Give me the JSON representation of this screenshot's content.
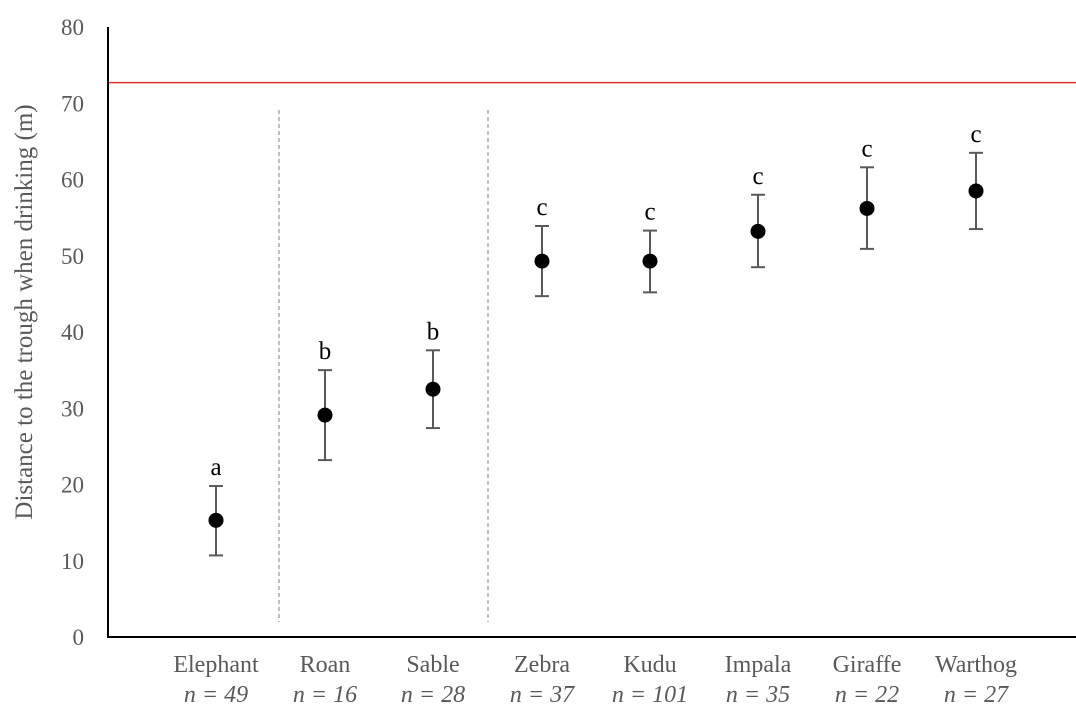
{
  "chart_data": {
    "type": "scatter",
    "title": "",
    "xlabel": "",
    "ylabel": "Distance to the trough when drinking (m)",
    "ylim": [
      0,
      80
    ],
    "yticks": [
      0,
      10,
      20,
      30,
      40,
      50,
      60,
      70,
      80
    ],
    "grid": false,
    "legend": "none",
    "reference_line": {
      "y": 72.7,
      "color": "#d9312b"
    },
    "group_separators_after_category_index": [
      0,
      2
    ],
    "categories": [
      "Elephant",
      "Roan",
      "Sable",
      "Zebra",
      "Kudu",
      "Impala",
      "Giraffe",
      "Warthog"
    ],
    "sample_sizes": [
      "n = 49",
      "n = 16",
      "n = 28",
      "n = 37",
      "n = 101",
      "n = 35",
      "n = 22",
      "n = 27"
    ],
    "series": [
      {
        "values": [
          15.3,
          29.1,
          32.5,
          49.3,
          49.3,
          53.2,
          56.2,
          58.5
        ],
        "error_upper": [
          19.8,
          35.0,
          37.6,
          53.9,
          53.3,
          58.0,
          61.6,
          63.5
        ],
        "error_lower": [
          10.7,
          23.2,
          27.4,
          44.7,
          45.2,
          48.5,
          50.9,
          53.5
        ]
      }
    ],
    "significance_letters": [
      "a",
      "b",
      "b",
      "c",
      "c",
      "c",
      "c",
      "c"
    ],
    "marker_color": "#000000",
    "errorbar_color": "#595959"
  }
}
